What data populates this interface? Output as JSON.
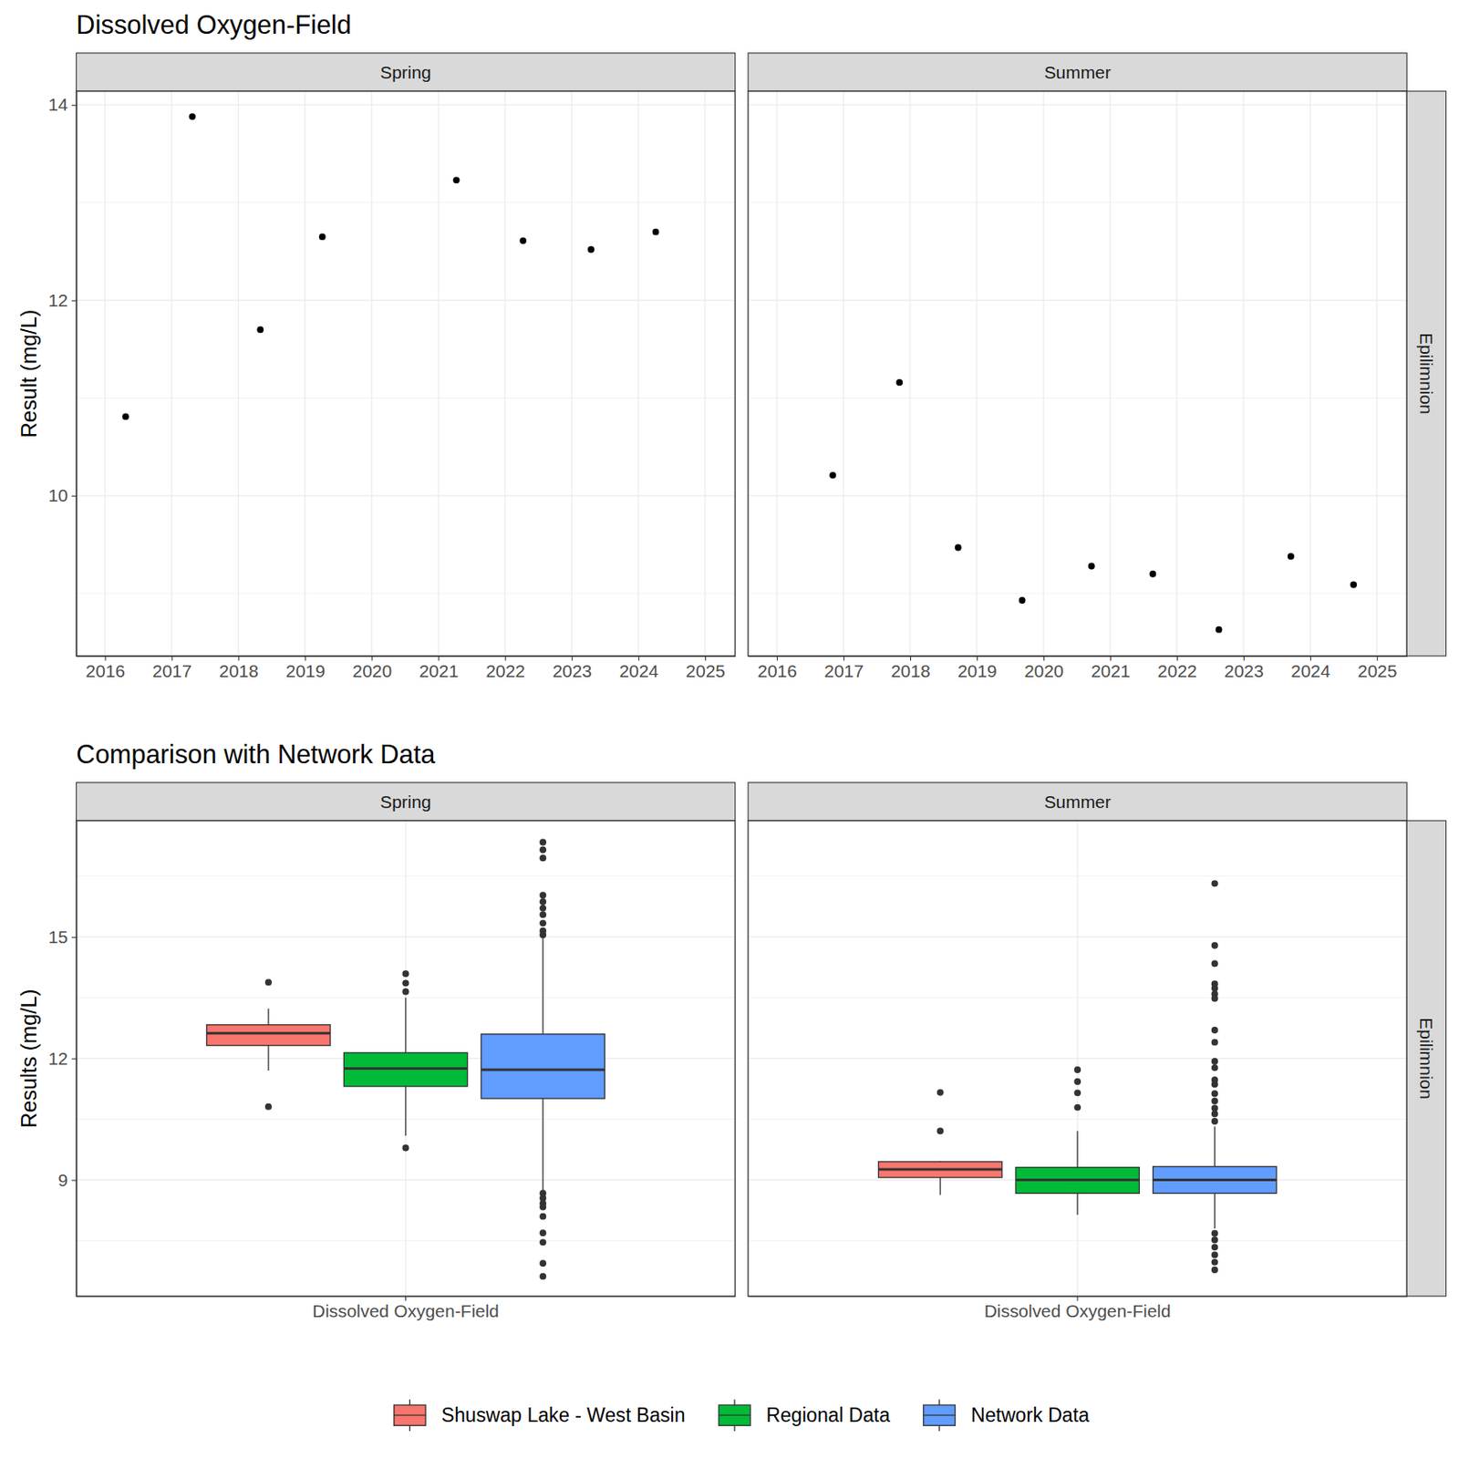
{
  "chart_data": [
    {
      "type": "scatter",
      "title": "Dissolved Oxygen-Field",
      "y_label": "Result (mg/L)",
      "row_label": "Epilimnion",
      "xlim": [
        2015.57,
        2025.45
      ],
      "xticks": [
        2016,
        2017,
        2018,
        2019,
        2020,
        2021,
        2022,
        2023,
        2024,
        2025
      ],
      "ylim": [
        8.36,
        14.14
      ],
      "yticks": [
        10,
        12,
        14
      ],
      "grid": true,
      "color": "#000000",
      "marker": "circle",
      "panels": [
        {
          "name": "Spring",
          "x": [
            2016.31,
            2017.31,
            2018.33,
            2019.26,
            2021.27,
            2022.27,
            2023.29,
            2024.26
          ],
          "values": [
            10.81,
            13.88,
            11.7,
            12.65,
            13.23,
            12.61,
            12.52,
            12.7
          ]
        },
        {
          "name": "Summer",
          "x": [
            2016.84,
            2017.84,
            2018.72,
            2019.68,
            2020.72,
            2021.64,
            2022.63,
            2023.71,
            2024.65
          ],
          "values": [
            10.21,
            11.16,
            9.47,
            8.93,
            9.28,
            9.2,
            8.63,
            9.38,
            9.09
          ]
        }
      ]
    },
    {
      "type": "box",
      "title": "Comparison with Network Data",
      "y_label": "Results (mg/L)",
      "row_label": "Epilimnion",
      "categories": [
        "Dissolved Oxygen-Field"
      ],
      "ylim": [
        6.13,
        17.87
      ],
      "yticks": [
        9,
        12,
        15
      ],
      "grid": true,
      "legend": "bottom",
      "series": [
        {
          "name": "Shuswap Lake - West Basin",
          "color": "#F8766D"
        },
        {
          "name": "Regional Data",
          "color": "#00BA38"
        },
        {
          "name": "Network Data",
          "color": "#619CFF"
        }
      ],
      "panels": [
        {
          "name": "Spring",
          "boxes": [
            {
              "whisker_low": 11.7,
              "q1": 12.32,
              "median": 12.62,
              "q3": 12.83,
              "whisker_high": 13.23,
              "outliers": [
                13.88,
                10.81
              ]
            },
            {
              "whisker_low": 10.09,
              "q1": 11.31,
              "median": 11.75,
              "q3": 12.14,
              "whisker_high": 13.5,
              "outliers": [
                14.09,
                13.86,
                13.65,
                9.79
              ]
            },
            {
              "whisker_low": 8.7,
              "q1": 11.01,
              "median": 11.72,
              "q3": 12.6,
              "whisker_high": 15.0,
              "outliers": [
                17.34,
                17.15,
                16.95,
                16.03,
                15.87,
                15.71,
                15.55,
                15.34,
                15.15,
                15.05,
                8.67,
                8.55,
                8.42,
                8.33,
                8.1,
                7.69,
                7.46,
                6.94,
                6.62
              ]
            }
          ]
        },
        {
          "name": "Summer",
          "boxes": [
            {
              "whisker_low": 8.63,
              "q1": 9.06,
              "median": 9.26,
              "q3": 9.45,
              "whisker_high": 9.47,
              "outliers": [
                11.16,
                10.21
              ]
            },
            {
              "whisker_low": 8.14,
              "q1": 8.67,
              "median": 9.0,
              "q3": 9.31,
              "whisker_high": 10.21,
              "outliers": [
                11.72,
                11.43,
                11.15,
                10.79
              ]
            },
            {
              "whisker_low": 7.8,
              "q1": 8.67,
              "median": 9.0,
              "q3": 9.33,
              "whisker_high": 10.32,
              "outliers": [
                16.32,
                14.79,
                14.34,
                13.84,
                13.73,
                13.59,
                13.48,
                12.7,
                12.4,
                11.93,
                11.77,
                11.47,
                11.36,
                11.13,
                10.95,
                10.77,
                10.63,
                10.45,
                7.68,
                7.52,
                7.34,
                7.15,
                6.97,
                6.78
              ]
            }
          ]
        }
      ]
    }
  ]
}
